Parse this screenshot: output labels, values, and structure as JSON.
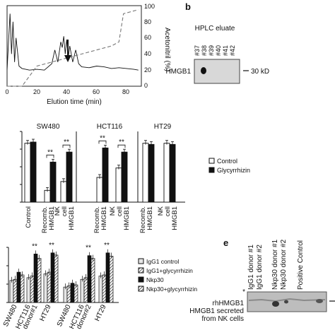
{
  "panels": {
    "a": {
      "label": "",
      "xlabel": "Elution time (min)",
      "ylabel_right": "Acetonitril (%)",
      "x_ticks": [
        "0",
        "20",
        "40",
        "60",
        "80"
      ],
      "y_right_ticks": [
        "0",
        "20",
        "40",
        "60",
        "80",
        "100"
      ]
    },
    "b": {
      "label": "b",
      "title": "HPLC eluate",
      "lanes": [
        "#37",
        "#38",
        "#39",
        "#40",
        "#41",
        "#42"
      ],
      "row_label": "HMGB1",
      "marker": "30 kD"
    },
    "c": {
      "groups": [
        "SW480",
        "HCT116",
        "HT29"
      ],
      "x_labels": [
        "Control",
        "Recomb. HMGB1",
        "NK cell HMGB1",
        "Recomb. HMGB1",
        "NK cell HMGB1"
      ],
      "legend": [
        "Control",
        "Glycyrrhizin"
      ],
      "significance": "**"
    },
    "d": {
      "x_labels": [
        "SW480",
        "HCT116 donor#1",
        "HT29",
        "SW480",
        "HCT116 donor#2",
        "HT29"
      ],
      "legend": [
        "IgG1 control",
        "IgG1+glycyrrhizin",
        "Nkp30",
        "Nkp30+glycyrrhizin"
      ],
      "significance": "**"
    },
    "e": {
      "label": "e",
      "lanes": [
        "IgG1 donor #1",
        "IgG1 donor #2",
        "Nkp30 donor #1",
        "Nkp30 donor #2",
        "Positive Control"
      ],
      "asterisk": "*",
      "row_labels": [
        "rhHMGB1",
        "HMGB1 secreted",
        "from NK cells"
      ]
    }
  },
  "chart_data": [
    {
      "type": "line",
      "panel": "a",
      "xlabel": "Elution time (min)",
      "ylabel": "",
      "ylabel_right": "Acetonitril (%)",
      "xlim": [
        0,
        90
      ],
      "ylim_right": [
        0,
        100
      ],
      "series": [
        {
          "values_x": [
            0,
            2,
            3,
            4,
            5,
            6,
            8,
            10,
            15,
            20,
            25,
            30,
            32,
            34,
            36,
            37,
            38,
            39,
            40,
            41,
            42,
            44,
            46,
            48,
            50,
            55,
            60,
            65,
            70,
            75,
            80,
            85,
            88
          ],
          "values_y": [
            20,
            90,
            40,
            80,
            30,
            60,
            25,
            22,
            20,
            21,
            20,
            28,
            45,
            30,
            55,
            48,
            62,
            40,
            58,
            35,
            50,
            30,
            45,
            28,
            24,
            23,
            25,
            24,
            22,
            23,
            22,
            21,
            20
          ]
        },
        {
          "values_x": [
            0,
            10,
            20,
            30,
            40,
            50,
            60,
            70,
            75,
            78,
            88
          ],
          "values_y": [
            0,
            0,
            25,
            30,
            35,
            40,
            45,
            50,
            55,
            90,
            95
          ]
        }
      ]
    },
    {
      "type": "bar",
      "panel": "c",
      "categories": [
        "SW480 Control",
        "SW480 Recomb. HMGB1",
        "SW480 NK cell HMGB1",
        "HCT116 Recomb. HMGB1",
        "HCT116 NK cell HMGB1",
        "HT29 Recomb. HMGB1",
        "HT29 NK cell HMGB1"
      ],
      "series": [
        {
          "name": "Control",
          "values": [
            100,
            20,
            35,
            42,
            58,
            100,
            100
          ]
        },
        {
          "name": "Glycyrrhizin",
          "values": [
            102,
            68,
            85,
            92,
            85,
            98,
            98
          ]
        }
      ],
      "ylim": [
        0,
        120
      ]
    },
    {
      "type": "bar",
      "panel": "d",
      "categories": [
        "SW480",
        "HCT116 donor#1",
        "HT29",
        "SW480",
        "HCT116 donor#2",
        "HT29"
      ],
      "series": [
        {
          "name": "IgG1 control",
          "values": [
            40,
            45,
            52,
            28,
            42,
            48
          ]
        },
        {
          "name": "IgG1+glycyrrhizin",
          "values": [
            42,
            48,
            55,
            30,
            45,
            50
          ]
        },
        {
          "name": "Nkp30",
          "values": [
            55,
            88,
            90,
            35,
            85,
            90
          ]
        },
        {
          "name": "Nkp30+glycyrrhizin",
          "values": [
            50,
            80,
            86,
            32,
            80,
            84
          ]
        }
      ],
      "ylim": [
        0,
        100
      ]
    }
  ]
}
